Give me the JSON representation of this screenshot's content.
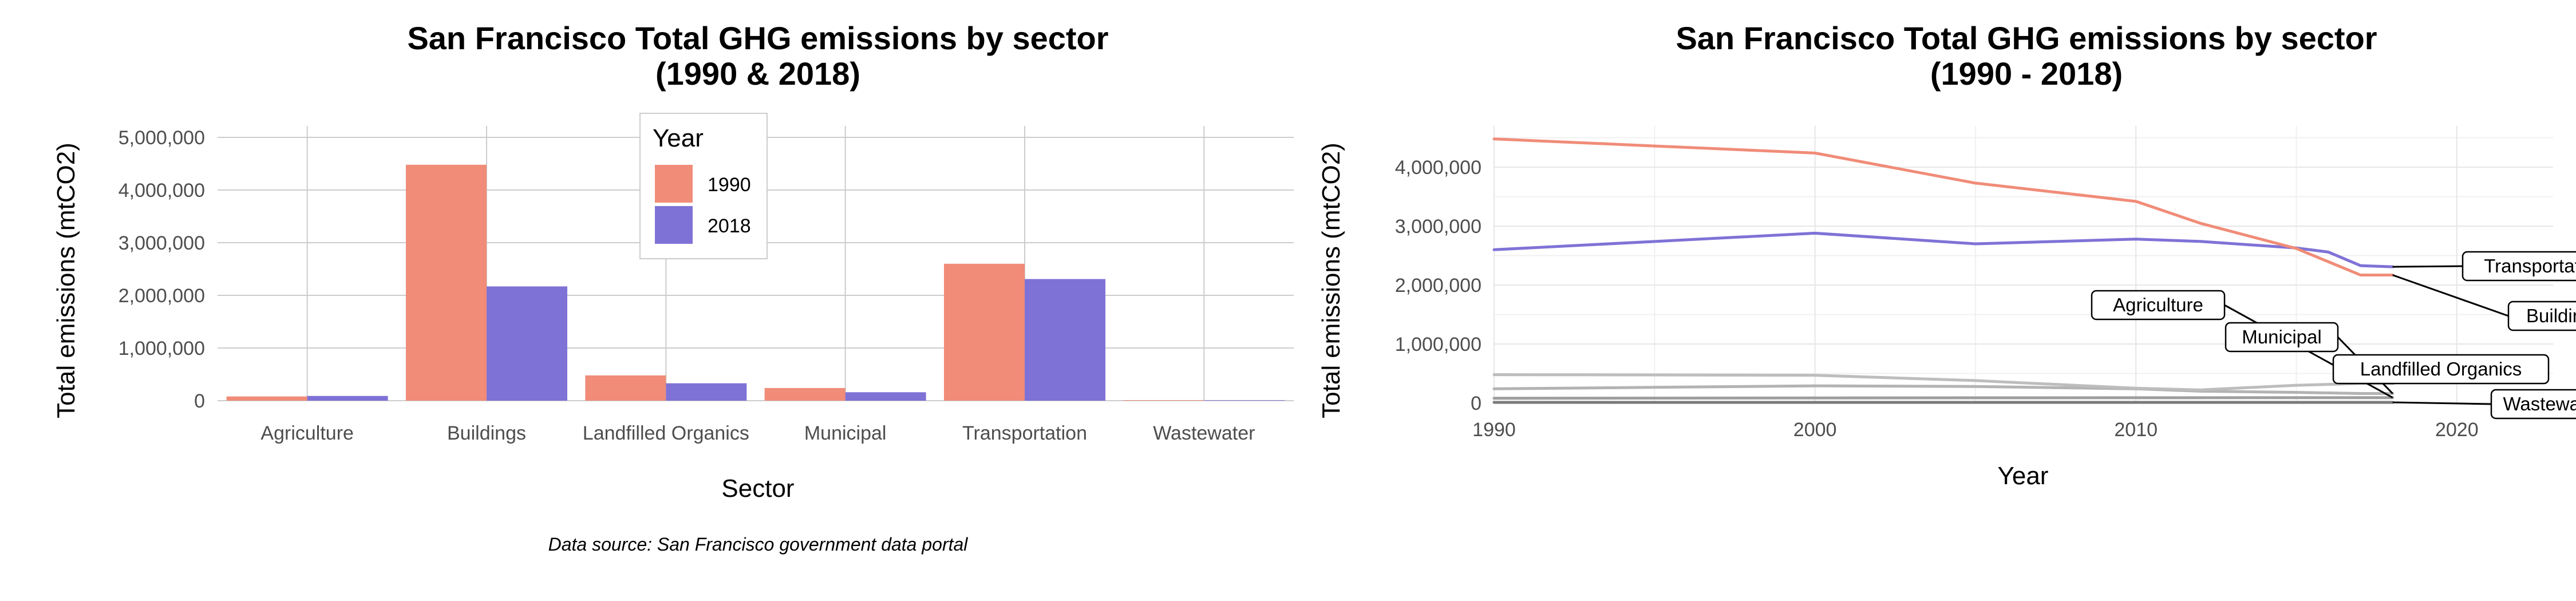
{
  "chart_data": [
    {
      "type": "bar",
      "title": "San Francisco Total GHG emissions by sector",
      "subtitle": "(1990 & 2018)",
      "xlabel": "Sector",
      "ylabel": "Total emissions (mtCO2)",
      "categories": [
        "Agriculture",
        "Buildings",
        "Landfilled Organics",
        "Municipal",
        "Transportation",
        "Wastewater"
      ],
      "series": [
        {
          "name": "1990",
          "color": "#F08C78",
          "values": [
            80000,
            4480000,
            480000,
            240000,
            2600000,
            10000
          ]
        },
        {
          "name": "2018",
          "color": "#7F72D6",
          "values": [
            90000,
            2170000,
            330000,
            160000,
            2310000,
            10000
          ]
        }
      ],
      "ylim": [
        0,
        5000000
      ],
      "yticks": [
        0,
        1000000,
        2000000,
        3000000,
        4000000,
        5000000
      ],
      "ytick_labels": [
        "0",
        "1,000,000",
        "2,000,000",
        "3,000,000",
        "4,000,000",
        "5,000,000"
      ],
      "legend": {
        "title": "Year",
        "position": "top-center"
      },
      "grid": true,
      "caption": "Data source: San Francisco government data portal"
    },
    {
      "type": "line",
      "title": "San Francisco Total GHG emissions by sector",
      "subtitle": "(1990 - 2018)",
      "xlabel": "Year",
      "ylabel": "Total emissions (mtCO2)",
      "xlim": [
        1990,
        2023
      ],
      "ylim": [
        0,
        4700000
      ],
      "xticks": [
        1990,
        2000,
        2010,
        2020
      ],
      "xtick_labels": [
        "1990",
        "2000",
        "2010",
        "2020"
      ],
      "yticks": [
        0,
        1000000,
        2000000,
        3000000,
        4000000
      ],
      "ytick_labels": [
        "0",
        "1,000,000",
        "2,000,000",
        "3,000,000",
        "4,000,000"
      ],
      "grid": true,
      "series": [
        {
          "name": "Buildings",
          "color": "#F08C78",
          "x": [
            1990,
            2000,
            2005,
            2010,
            2012,
            2015,
            2017,
            2018
          ],
          "y": [
            4480000,
            4240000,
            3730000,
            3420000,
            3050000,
            2620000,
            2170000,
            2170000
          ]
        },
        {
          "name": "Transportation",
          "color": "#7F72D6",
          "x": [
            1990,
            2000,
            2005,
            2010,
            2012,
            2015,
            2016,
            2017,
            2018
          ],
          "y": [
            2600000,
            2880000,
            2700000,
            2780000,
            2740000,
            2630000,
            2560000,
            2330000,
            2310000
          ]
        },
        {
          "name": "Landfilled Organics",
          "color": "#BDBDBD",
          "x": [
            1990,
            2000,
            2005,
            2010,
            2012,
            2015,
            2017,
            2018
          ],
          "y": [
            480000,
            470000,
            380000,
            250000,
            220000,
            300000,
            330000,
            330000
          ]
        },
        {
          "name": "Municipal",
          "color": "#B3B3B3",
          "x": [
            1990,
            2000,
            2005,
            2010,
            2012,
            2015,
            2017,
            2018
          ],
          "y": [
            240000,
            290000,
            280000,
            240000,
            200000,
            180000,
            160000,
            160000
          ]
        },
        {
          "name": "Agriculture",
          "color": "#9E9E9E",
          "x": [
            1990,
            2000,
            2010,
            2018
          ],
          "y": [
            80000,
            85000,
            88000,
            90000
          ]
        },
        {
          "name": "Wastewater",
          "color": "#7A7A7A",
          "x": [
            1990,
            2000,
            2010,
            2018
          ],
          "y": [
            10000,
            10000,
            10000,
            10000
          ]
        }
      ],
      "annotations": [
        "Transportation",
        "Buildings",
        "Agriculture",
        "Municipal",
        "Landfilled Organics",
        "Wastewater"
      ]
    }
  ]
}
